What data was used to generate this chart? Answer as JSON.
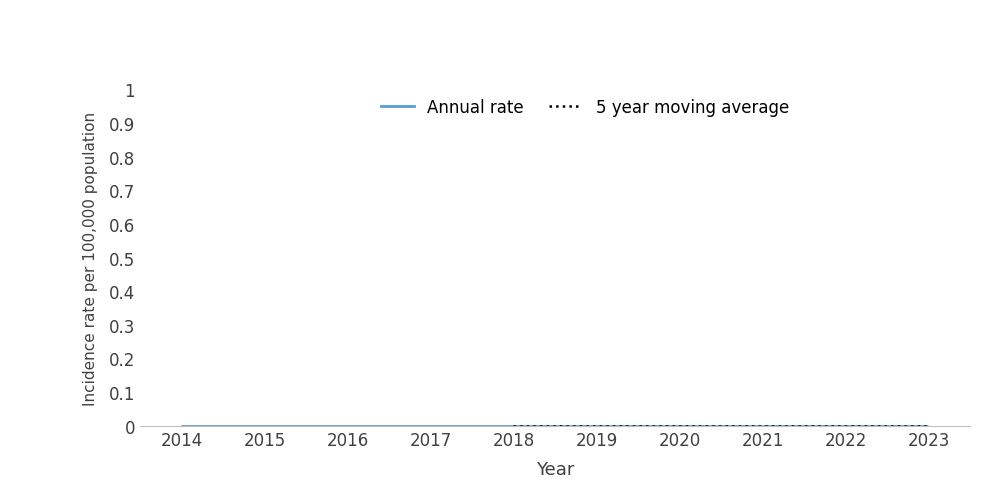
{
  "years": [
    2014,
    2015,
    2016,
    2017,
    2018,
    2019,
    2020,
    2021,
    2022,
    2023
  ],
  "annual_rate": [
    0,
    0,
    0,
    0,
    0,
    0,
    0,
    0,
    0,
    0
  ],
  "moving_avg_years": [
    2018,
    2019,
    2020,
    2021,
    2022,
    2023
  ],
  "moving_avg": [
    0,
    0,
    0,
    0,
    0,
    0
  ],
  "xlabel": "Year",
  "ylabel": "Incidence rate per 100,000 population",
  "ylim": [
    0,
    1
  ],
  "yticks": [
    0,
    0.1,
    0.2,
    0.3,
    0.4,
    0.5,
    0.6,
    0.7,
    0.8,
    0.9,
    1
  ],
  "annual_rate_color": "#5B9BD5",
  "moving_avg_color": "#000000",
  "legend_annual": "Annual rate",
  "legend_moving": "5 year moving average",
  "background_color": "#ffffff",
  "spine_color": "#c0c0c0"
}
